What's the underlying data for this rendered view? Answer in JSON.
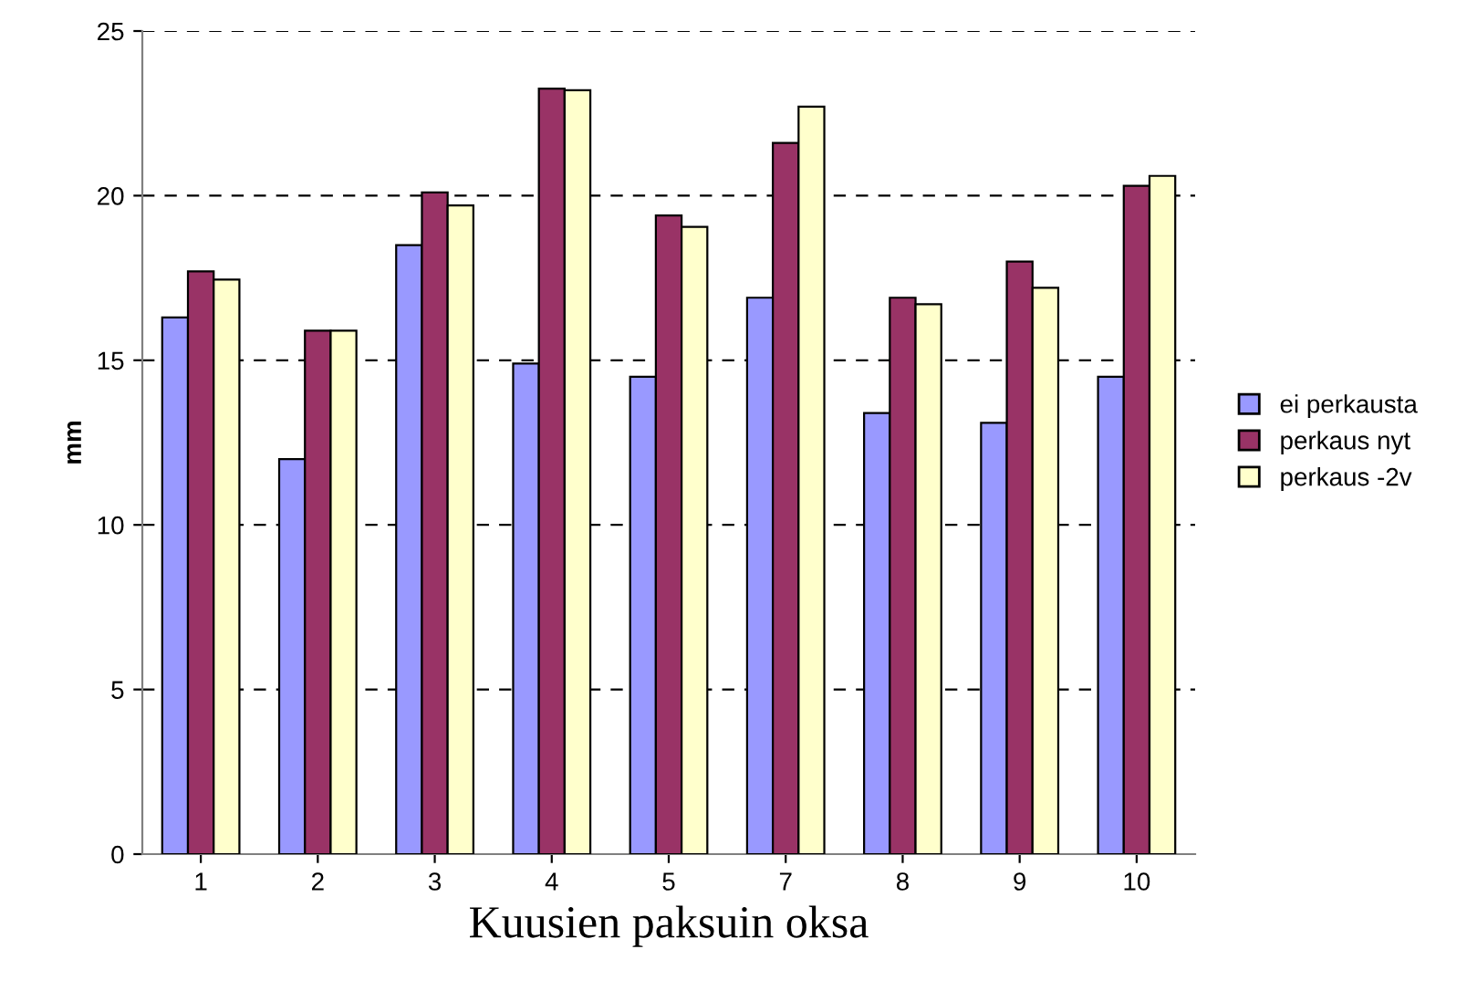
{
  "chart_data": {
    "type": "bar",
    "xlabel": "Kuusien paksuin oksa",
    "ylabel": "mm",
    "categories": [
      "1",
      "2",
      "3",
      "4",
      "5",
      "7",
      "8",
      "9",
      "10"
    ],
    "series": [
      {
        "name": "ei perkausta",
        "color": "#9999ff",
        "values": [
          16.3,
          12.0,
          18.5,
          14.9,
          14.5,
          16.9,
          13.4,
          13.1,
          14.5
        ]
      },
      {
        "name": "perkaus nyt",
        "color": "#993366",
        "values": [
          17.7,
          15.9,
          20.1,
          23.25,
          19.4,
          21.6,
          16.9,
          18.0,
          20.3
        ]
      },
      {
        "name": "perkaus -2v",
        "color": "#ffffcc",
        "values": [
          17.45,
          15.9,
          19.7,
          23.2,
          19.05,
          22.7,
          16.7,
          17.2,
          20.6
        ]
      }
    ],
    "ylim": [
      0,
      25
    ],
    "yticks": [
      0,
      5,
      10,
      15,
      20,
      25
    ],
    "grid": "y",
    "legend": "right"
  }
}
